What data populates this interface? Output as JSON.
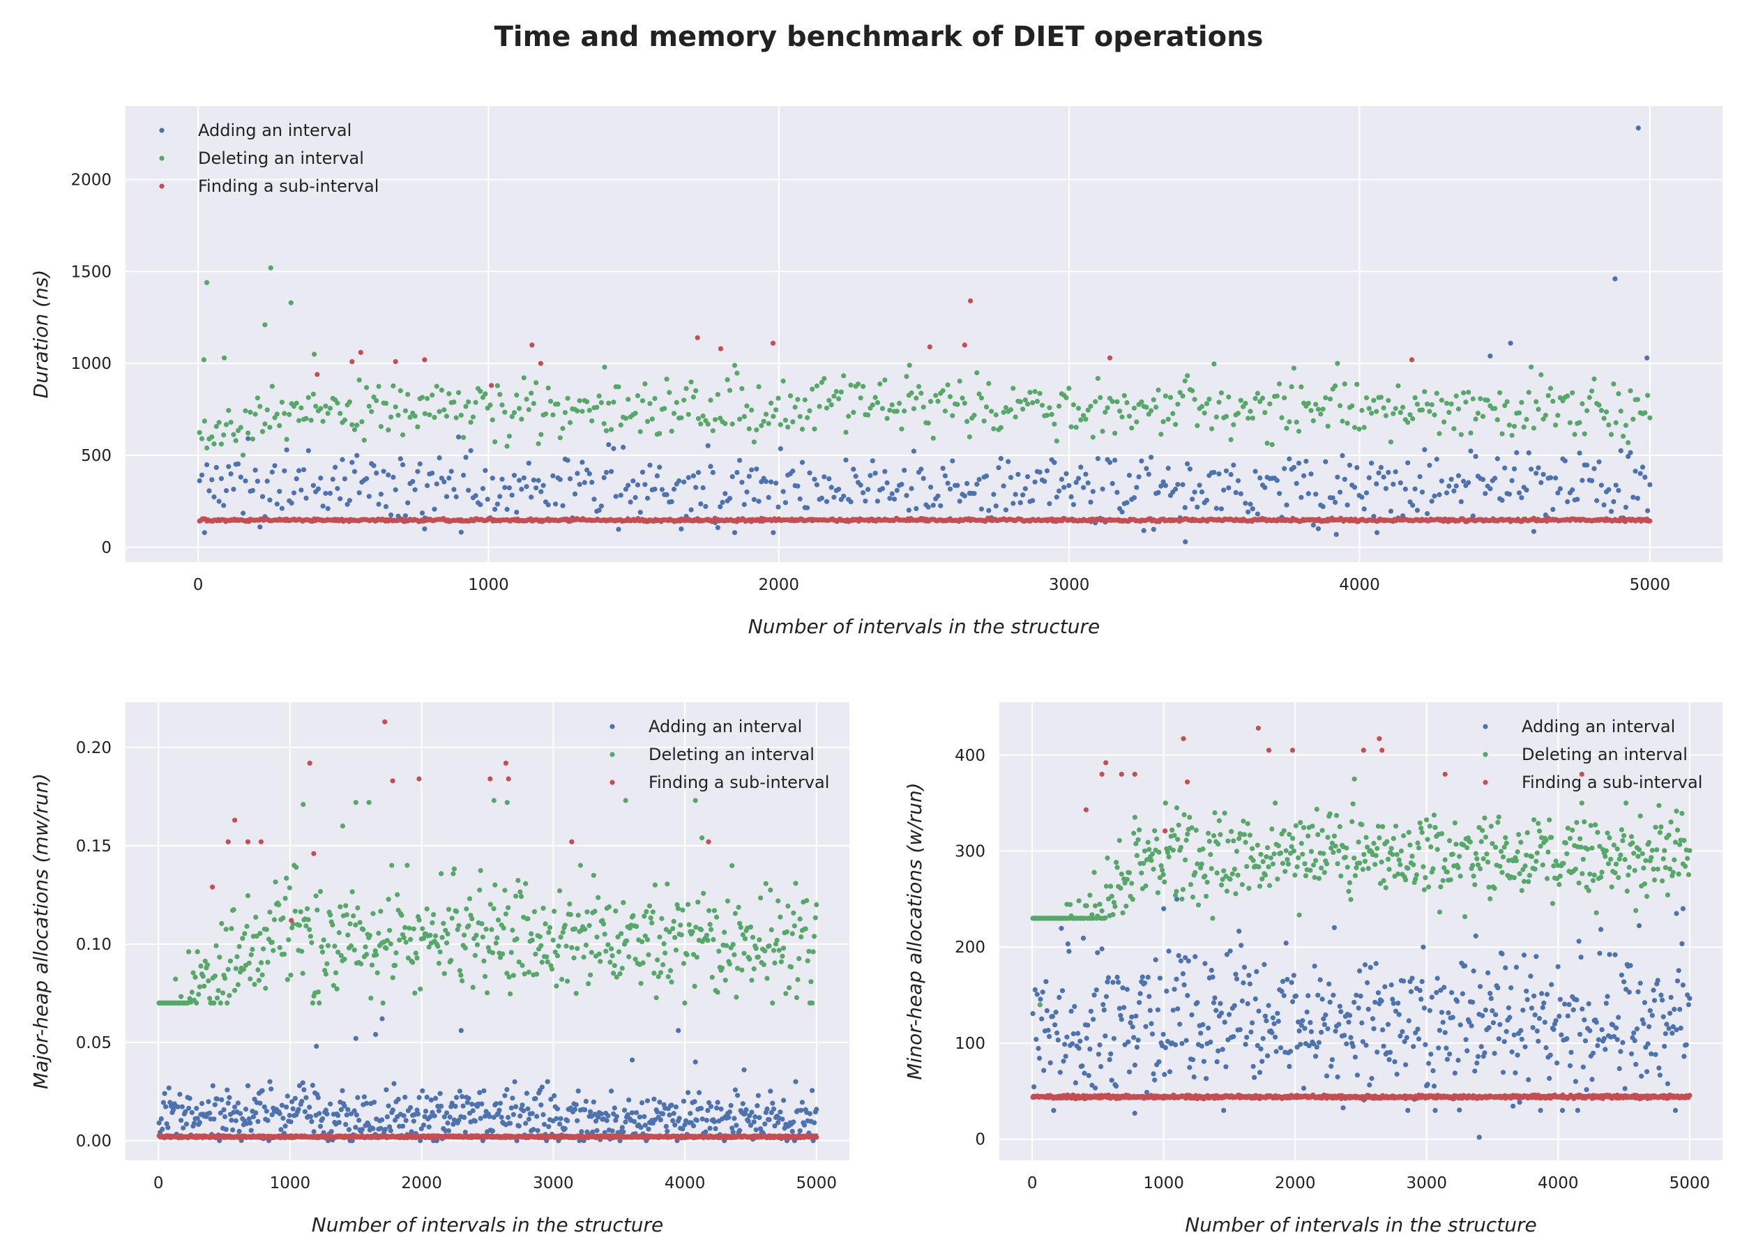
{
  "title": "Time and memory benchmark of DIET operations",
  "colors": {
    "background": "#eaeaf2",
    "grid": "#ffffff",
    "add": "#4c72b0",
    "delete": "#55a868",
    "find": "#c44e52"
  },
  "chart_data": [
    {
      "type": "scatter",
      "panel": "top",
      "xlabel": "Number of intervals in the structure",
      "ylabel": "Duration (ns)",
      "xlim": [
        -250,
        5250
      ],
      "ylim": [
        -80,
        2400
      ],
      "xticks": [
        0,
        1000,
        2000,
        3000,
        4000,
        5000
      ],
      "yticks": [
        0,
        500,
        1000,
        1500,
        2000
      ],
      "grid": true,
      "legend_position": "top-left",
      "series": [
        {
          "name": "Adding an interval",
          "color": "#4c72b0",
          "n_points": 600,
          "y_min": 80,
          "y_max": 600,
          "y_typical": 330,
          "y_spread": 100,
          "outliers": [
            [
              4960,
              2280
            ],
            [
              4880,
              1460
            ],
            [
              4520,
              1110
            ],
            [
              4450,
              1040
            ],
            [
              4990,
              1030
            ],
            [
              3400,
              30
            ],
            [
              3920,
              70
            ],
            [
              4060,
              80
            ],
            [
              780,
              100
            ]
          ]
        },
        {
          "name": "Deleting an interval",
          "color": "#55a868",
          "n_points": 600,
          "y_min": 400,
          "y_max": 1000,
          "y_typical": 760,
          "y_spread": 80,
          "ramp": {
            "until": 600,
            "start": 560
          },
          "outliers": [
            [
              30,
              1440
            ],
            [
              250,
              1520
            ],
            [
              320,
              1330
            ],
            [
              230,
              1210
            ],
            [
              20,
              1020
            ],
            [
              90,
              1030
            ],
            [
              400,
              1050
            ],
            [
              2450,
              990
            ],
            [
              1400,
              980
            ]
          ]
        },
        {
          "name": "Finding a sub-interval",
          "color": "#c44e52",
          "n_points": 1000,
          "y_min": 140,
          "y_max": 160,
          "y_typical": 148,
          "y_spread": 4,
          "outliers": [
            [
              2660,
              1340
            ],
            [
              1720,
              1140
            ],
            [
              1150,
              1100
            ],
            [
              1980,
              1110
            ],
            [
              2640,
              1100
            ],
            [
              2520,
              1090
            ],
            [
              1800,
              1080
            ],
            [
              560,
              1060
            ],
            [
              3140,
              1030
            ],
            [
              4180,
              1020
            ],
            [
              680,
              1010
            ],
            [
              780,
              1020
            ],
            [
              1180,
              1000
            ],
            [
              530,
              1010
            ],
            [
              410,
              940
            ],
            [
              1010,
              880
            ]
          ]
        }
      ]
    },
    {
      "type": "scatter",
      "panel": "bottom-left",
      "xlabel": "Number of intervals in the structure",
      "ylabel": "Major-heap allocations (mw/run)",
      "xlim": [
        -250,
        5250
      ],
      "ylim": [
        -0.01,
        0.223
      ],
      "xticks": [
        0,
        1000,
        2000,
        3000,
        4000,
        5000
      ],
      "yticks": [
        0.0,
        0.05,
        0.1,
        0.15,
        0.2
      ],
      "ytick_labels": [
        "0.00",
        "0.05",
        "0.10",
        "0.15",
        "0.20"
      ],
      "grid": true,
      "legend_position": "top-right",
      "series": [
        {
          "name": "Adding an interval",
          "color": "#4c72b0",
          "n_points": 600,
          "y_min": 0.0,
          "y_max": 0.03,
          "y_typical": 0.012,
          "y_spread": 0.007,
          "outliers": [
            [
              1200,
              0.048
            ],
            [
              1500,
              0.052
            ],
            [
              1650,
              0.054
            ],
            [
              1700,
              0.062
            ],
            [
              2300,
              0.056
            ],
            [
              3600,
              0.041
            ],
            [
              3950,
              0.056
            ],
            [
              4080,
              0.04
            ],
            [
              4450,
              0.036
            ]
          ]
        },
        {
          "name": "Deleting an interval",
          "color": "#55a868",
          "n_points": 600,
          "y_min": 0.07,
          "y_max": 0.14,
          "y_typical": 0.104,
          "y_spread": 0.015,
          "ramp": {
            "until": 900,
            "start": 0.04
          },
          "outliers": [
            [
              1100,
              0.171
            ],
            [
              1400,
              0.16
            ],
            [
              1500,
              0.172
            ],
            [
              2550,
              0.173
            ],
            [
              2650,
              0.172
            ],
            [
              3550,
              0.173
            ],
            [
              4080,
              0.173
            ],
            [
              4130,
              0.154
            ],
            [
              1600,
              0.172
            ]
          ]
        },
        {
          "name": "Finding a sub-interval",
          "color": "#c44e52",
          "n_points": 1000,
          "y_min": 0.0015,
          "y_max": 0.0025,
          "y_typical": 0.002,
          "y_spread": 0.0003,
          "outliers": [
            [
              1720,
              0.213
            ],
            [
              1150,
              0.192
            ],
            [
              2640,
              0.192
            ],
            [
              1780,
              0.183
            ],
            [
              1980,
              0.184
            ],
            [
              2520,
              0.184
            ],
            [
              2660,
              0.184
            ],
            [
              580,
              0.163
            ],
            [
              530,
              0.152
            ],
            [
              680,
              0.152
            ],
            [
              780,
              0.152
            ],
            [
              3140,
              0.152
            ],
            [
              4180,
              0.152
            ],
            [
              410,
              0.129
            ],
            [
              1180,
              0.146
            ],
            [
              1010,
              0.112
            ]
          ]
        }
      ]
    },
    {
      "type": "scatter",
      "panel": "bottom-right",
      "xlabel": "Number of intervals in the structure",
      "ylabel": "Minor-heap allocations (w/run)",
      "xlim": [
        -250,
        5250
      ],
      "ylim": [
        -22,
        455
      ],
      "xticks": [
        0,
        1000,
        2000,
        3000,
        4000,
        5000
      ],
      "yticks": [
        0,
        100,
        200,
        300,
        400
      ],
      "grid": true,
      "legend_position": "top-right",
      "series": [
        {
          "name": "Adding an interval",
          "color": "#4c72b0",
          "n_points": 600,
          "y_min": 30,
          "y_max": 230,
          "y_typical": 120,
          "y_spread": 40,
          "outliers": [
            [
              3400,
              2
            ],
            [
              780,
              27
            ],
            [
              4950,
              240
            ],
            [
              1000,
              240
            ],
            [
              4900,
              235
            ],
            [
              1100,
              250
            ]
          ]
        },
        {
          "name": "Deleting an interval",
          "color": "#55a868",
          "n_points": 600,
          "y_min": 230,
          "y_max": 350,
          "y_typical": 295,
          "y_spread": 22,
          "ramp": {
            "until": 900,
            "start": 100
          },
          "outliers": [
            [
              2450,
              375
            ],
            [
              1100,
              345
            ],
            [
              4180,
              350
            ],
            [
              60,
              140
            ]
          ]
        },
        {
          "name": "Finding a sub-interval",
          "color": "#c44e52",
          "n_points": 1000,
          "y_min": 42,
          "y_max": 46,
          "y_typical": 44,
          "y_spread": 0.8,
          "outliers": [
            [
              1720,
              428
            ],
            [
              1150,
              417
            ],
            [
              2640,
              417
            ],
            [
              1800,
              405
            ],
            [
              1980,
              405
            ],
            [
              2520,
              405
            ],
            [
              2660,
              405
            ],
            [
              560,
              392
            ],
            [
              530,
              380
            ],
            [
              680,
              380
            ],
            [
              780,
              380
            ],
            [
              3140,
              380
            ],
            [
              4180,
              380
            ],
            [
              1180,
              372
            ],
            [
              410,
              343
            ],
            [
              1010,
              321
            ]
          ]
        }
      ]
    }
  ]
}
